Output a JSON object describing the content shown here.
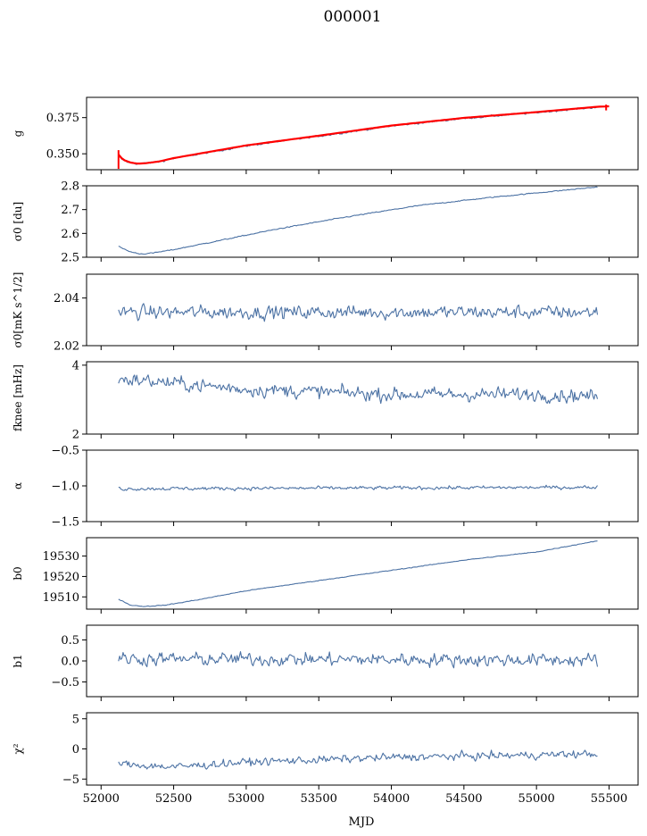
{
  "title": "000001",
  "xlabel": "MJD",
  "colors": {
    "series": "#4c72a4",
    "fit": "#ff0000",
    "axes": "#000000"
  },
  "chart_data": {
    "type": "line",
    "shared_x": {
      "label": "MJD",
      "range": [
        51900,
        55700
      ],
      "ticks": [
        "52000",
        "52500",
        "53000",
        "53500",
        "54000",
        "54500",
        "55000",
        "55500"
      ],
      "x_start": 52120,
      "x_end": 55420
    },
    "panels": [
      {
        "ylabel": "g",
        "ylim": [
          0.339,
          0.389
        ],
        "ticks": [
          "0.350",
          "0.375"
        ],
        "tick_values": [
          0.35,
          0.375
        ],
        "series": [
          {
            "trend": [
              [
                52120,
                0.3485
              ],
              [
                52150,
                0.3455
              ],
              [
                52200,
                0.3438
              ],
              [
                52250,
                0.3432
              ],
              [
                52300,
                0.3434
              ],
              [
                52400,
                0.3445
              ],
              [
                52500,
                0.3468
              ],
              [
                52700,
                0.3502
              ],
              [
                53000,
                0.3555
              ],
              [
                53500,
                0.3622
              ],
              [
                54000,
                0.3692
              ],
              [
                54500,
                0.3745
              ],
              [
                55000,
                0.3785
              ],
              [
                55420,
                0.3823
              ]
            ],
            "noise": 0.0009
          }
        ],
        "overlay": {
          "trend": [
            [
              52120,
              0.3495
            ],
            [
              52150,
              0.346
            ],
            [
              52200,
              0.344
            ],
            [
              52250,
              0.3432
            ],
            [
              52300,
              0.3434
            ],
            [
              52400,
              0.3447
            ],
            [
              52500,
              0.347
            ],
            [
              52700,
              0.3505
            ],
            [
              53000,
              0.3558
            ],
            [
              53500,
              0.3625
            ],
            [
              54000,
              0.3695
            ],
            [
              54500,
              0.3748
            ],
            [
              55000,
              0.3788
            ],
            [
              55420,
              0.3825
            ],
            [
              55500,
              0.3828
            ]
          ]
        }
      },
      {
        "ylabel": "σ0 [du]",
        "ylim": [
          2.5,
          2.8
        ],
        "ticks": [
          "2.5",
          "2.6",
          "2.7",
          "2.8"
        ],
        "tick_values": [
          2.5,
          2.6,
          2.7,
          2.8
        ],
        "series": [
          {
            "trend": [
              [
                52120,
                2.545
              ],
              [
                52200,
                2.523
              ],
              [
                52270,
                2.514
              ],
              [
                52350,
                2.517
              ],
              [
                52500,
                2.532
              ],
              [
                52800,
                2.568
              ],
              [
                53200,
                2.617
              ],
              [
                53700,
                2.67
              ],
              [
                54200,
                2.718
              ],
              [
                54700,
                2.752
              ],
              [
                55000,
                2.77
              ],
              [
                55420,
                2.795
              ]
            ],
            "noise": 0.003
          }
        ]
      },
      {
        "ylabel": "σ0[mK s^1/2]",
        "ylim": [
          2.02,
          2.05
        ],
        "ticks": [
          "2.02",
          "2.04"
        ],
        "tick_values": [
          2.02,
          2.04
        ],
        "series": [
          {
            "trend": [
              [
                52120,
                2.034
              ],
              [
                55420,
                2.034
              ]
            ],
            "noise": 0.004
          }
        ]
      },
      {
        "ylabel": "fknee [mHz]",
        "ylim": [
          2,
          4.1
        ],
        "ticks": [
          "2",
          "4"
        ],
        "tick_values": [
          2,
          4
        ],
        "series": [
          {
            "trend": [
              [
                52120,
                3.6
              ],
              [
                52300,
                3.55
              ],
              [
                53000,
                3.3
              ],
              [
                54000,
                3.15
              ],
              [
                55000,
                3.15
              ],
              [
                55420,
                3.1
              ]
            ],
            "noise": 0.28
          }
        ]
      },
      {
        "ylabel": "α",
        "ylim": [
          -1.5,
          -0.5
        ],
        "ticks": [
          "−1.5",
          "−1.0",
          "−0.5"
        ],
        "tick_values": [
          -1.5,
          -1.0,
          -0.5
        ],
        "series": [
          {
            "trend": [
              [
                52120,
                -1.04
              ],
              [
                55420,
                -1.02
              ]
            ],
            "noise": 0.035
          }
        ]
      },
      {
        "ylabel": "b0",
        "ylim": [
          19504,
          19539
        ],
        "ticks": [
          "19510",
          "19520",
          "19530"
        ],
        "tick_values": [
          19510,
          19520,
          19530
        ],
        "series": [
          {
            "trend": [
              [
                52120,
                19509
              ],
              [
                52200,
                19506
              ],
              [
                52300,
                19505.3
              ],
              [
                52450,
                19506
              ],
              [
                52700,
                19509
              ],
              [
                53000,
                19513
              ],
              [
                53500,
                19518
              ],
              [
                54000,
                19523
              ],
              [
                54500,
                19528
              ],
              [
                55000,
                19532
              ],
              [
                55420,
                19537.5
              ]
            ],
            "noise": 0.25
          }
        ]
      },
      {
        "ylabel": "b1",
        "ylim": [
          -0.85,
          0.85
        ],
        "ticks": [
          "−0.5",
          "0.0",
          "0.5"
        ],
        "tick_values": [
          -0.5,
          0.0,
          0.5
        ],
        "series": [
          {
            "trend": [
              [
                52120,
                0.05
              ],
              [
                55420,
                0.02
              ]
            ],
            "noise": 0.22
          }
        ]
      },
      {
        "ylabel": "χ²",
        "ylim": [
          -6,
          6
        ],
        "ticks": [
          "−5",
          "0",
          "5"
        ],
        "tick_values": [
          -5,
          0,
          5
        ],
        "series": [
          {
            "trend": [
              [
                52120,
                -2.5
              ],
              [
                52500,
                -3.0
              ],
              [
                53000,
                -2.2
              ],
              [
                54000,
                -1.4
              ],
              [
                55000,
                -1.0
              ],
              [
                55420,
                -0.8
              ]
            ],
            "noise": 0.9
          }
        ]
      }
    ]
  }
}
